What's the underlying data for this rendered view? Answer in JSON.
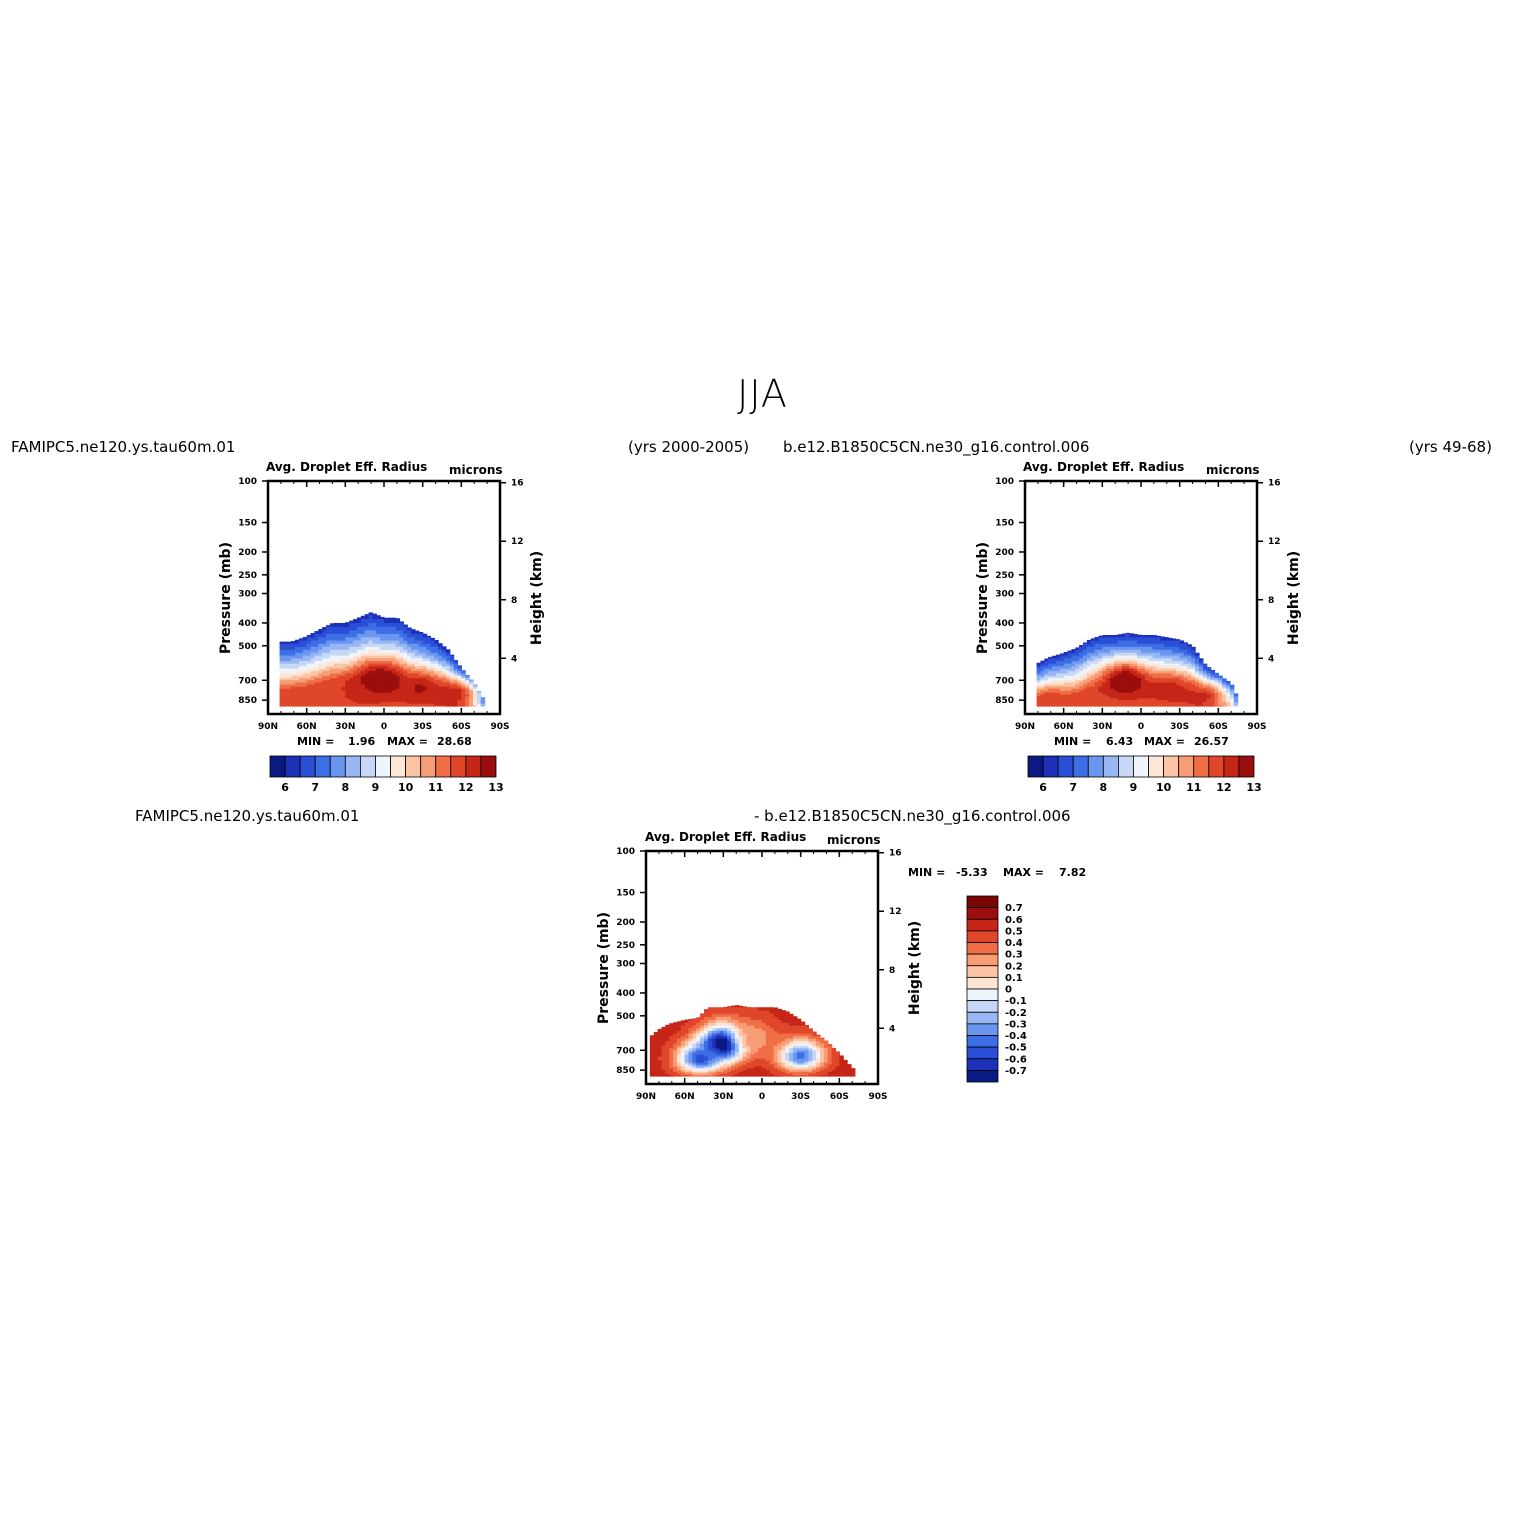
{
  "title": "JJA",
  "header_left": {
    "case": "FAMIPC5.ne120.ys.tau60m.01",
    "years": "(yrs 2000-2005)"
  },
  "header_right": {
    "case": "b.e12.B1850C5CN.ne30_g16.control.006",
    "years": "(yrs 49-68)"
  },
  "diff_header": {
    "left": "FAMIPC5.ne120.ys.tau60m.01",
    "right": "- b.e12.B1850C5CN.ne30_g16.control.006"
  },
  "panel_labels": {
    "variable": "Avg. Droplet Eff. Radius",
    "units": "microns",
    "ylabel": "Pressure (mb)",
    "y2label": "Height (km)"
  },
  "panels": [
    {
      "id": "left",
      "min_label": "MIN =",
      "min": "1.96",
      "max_label": "MAX =",
      "max": "28.68"
    },
    {
      "id": "right",
      "min_label": "MIN =",
      "min": "6.43",
      "max_label": "MAX =",
      "max": "26.57"
    },
    {
      "id": "diff",
      "min_label": "MIN =",
      "min": "-5.33",
      "max_label": "MAX =",
      "max": "7.82"
    }
  ],
  "colors": {
    "seq": [
      "#0a1a82",
      "#1c30b8",
      "#2a4fd6",
      "#3c6ee6",
      "#6a96f0",
      "#98b6f4",
      "#c6d8f6",
      "#eef4fb",
      "#fde6d6",
      "#fbc4a4",
      "#f79c74",
      "#ef6e46",
      "#e0462a",
      "#c62618",
      "#9a0e0e"
    ],
    "div": [
      "#0a1a82",
      "#1c30b8",
      "#2a4fd6",
      "#3c6ee6",
      "#6a96f0",
      "#98b6f4",
      "#c6d8f6",
      "#eef4fb",
      "#fde6d6",
      "#fbc4a4",
      "#f79c74",
      "#ef6e46",
      "#e0462a",
      "#c62618",
      "#9a0e0e",
      "#7a0606"
    ]
  },
  "chart_data": [
    {
      "type": "heatmap",
      "panel": "left",
      "title": "Avg. Droplet Eff. Radius",
      "units": "microns",
      "x_ticks": [
        "90N",
        "60N",
        "30N",
        "0",
        "30S",
        "60S",
        "90S"
      ],
      "x_values": [
        90,
        60,
        30,
        0,
        -30,
        -60,
        -90
      ],
      "y_ticks": [
        100,
        150,
        200,
        250,
        300,
        400,
        500,
        700,
        850
      ],
      "y2_ticks": [
        16,
        12,
        8,
        4
      ],
      "xlabel": "",
      "ylabel": "Pressure (mb)",
      "y2label": "Height (km)",
      "ylim": [
        1000,
        100
      ],
      "colorbar_labels": [
        "6",
        "7",
        "8",
        "9",
        "10",
        "11",
        "12",
        "13"
      ],
      "colorbar_levels": [
        6,
        6.5,
        7,
        7.5,
        8,
        8.5,
        9,
        9.5,
        10,
        10.5,
        11,
        11.5,
        12,
        12.5,
        13
      ],
      "min": 1.96,
      "max": 28.68,
      "cloud_top_pressure": [
        [
          82,
          480
        ],
        [
          72,
          480
        ],
        [
          62,
          460
        ],
        [
          48,
          420
        ],
        [
          40,
          400
        ],
        [
          30,
          400
        ],
        [
          20,
          380
        ],
        [
          10,
          360
        ],
        [
          0,
          380
        ],
        [
          -10,
          380
        ],
        [
          -20,
          420
        ],
        [
          -30,
          440
        ],
        [
          -40,
          470
        ],
        [
          -50,
          520
        ],
        [
          -60,
          620
        ],
        [
          -70,
          720
        ],
        [
          -78,
          850
        ]
      ],
      "core": [
        {
          "lat": 2,
          "p": 700,
          "v": 13.5
        },
        {
          "lat": 15,
          "p": 780,
          "v": 12.5
        },
        {
          "lat": -28,
          "p": 760,
          "v": 12.8
        },
        {
          "lat": -55,
          "p": 800,
          "v": 12.6
        },
        {
          "lat": 70,
          "p": 870,
          "v": 12.2
        }
      ]
    },
    {
      "type": "heatmap",
      "panel": "right",
      "title": "Avg. Droplet Eff. Radius",
      "units": "microns",
      "x_ticks": [
        "90N",
        "60N",
        "30N",
        "0",
        "30S",
        "60S",
        "90S"
      ],
      "x_values": [
        90,
        60,
        30,
        0,
        -30,
        -60,
        -90
      ],
      "y_ticks": [
        100,
        150,
        200,
        250,
        300,
        400,
        500,
        700,
        850
      ],
      "y2_ticks": [
        16,
        12,
        8,
        4
      ],
      "xlabel": "",
      "ylabel": "Pressure (mb)",
      "y2label": "Height (km)",
      "ylim": [
        1000,
        100
      ],
      "colorbar_labels": [
        "6",
        "7",
        "8",
        "9",
        "10",
        "11",
        "12",
        "13"
      ],
      "colorbar_levels": [
        6,
        6.5,
        7,
        7.5,
        8,
        8.5,
        9,
        9.5,
        10,
        10.5,
        11,
        11.5,
        12,
        12.5,
        13
      ],
      "min": 6.43,
      "max": 26.57,
      "cloud_top_pressure": [
        [
          82,
          600
        ],
        [
          72,
          560
        ],
        [
          62,
          540
        ],
        [
          50,
          510
        ],
        [
          40,
          470
        ],
        [
          30,
          450
        ],
        [
          20,
          450
        ],
        [
          10,
          440
        ],
        [
          0,
          450
        ],
        [
          -10,
          450
        ],
        [
          -20,
          460
        ],
        [
          -30,
          470
        ],
        [
          -40,
          500
        ],
        [
          -50,
          600
        ],
        [
          -60,
          660
        ],
        [
          -70,
          720
        ],
        [
          -76,
          850
        ]
      ],
      "core": [
        {
          "lat": 12,
          "p": 700,
          "v": 13.5
        },
        {
          "lat": -22,
          "p": 760,
          "v": 12.5
        },
        {
          "lat": -48,
          "p": 820,
          "v": 12.4
        },
        {
          "lat": 72,
          "p": 860,
          "v": 12.2
        }
      ]
    },
    {
      "type": "heatmap",
      "panel": "diff",
      "title": "Avg. Droplet Eff. Radius",
      "units": "microns",
      "x_ticks": [
        "90N",
        "60N",
        "30N",
        "0",
        "30S",
        "60S",
        "90S"
      ],
      "x_values": [
        90,
        60,
        30,
        0,
        -30,
        -60,
        -90
      ],
      "y_ticks": [
        100,
        150,
        200,
        250,
        300,
        400,
        500,
        700,
        850
      ],
      "y2_ticks": [
        16,
        12,
        8,
        4
      ],
      "xlabel": "",
      "ylabel": "Pressure (mb)",
      "y2label": "Height (km)",
      "ylim": [
        1000,
        100
      ],
      "colorbar_labels": [
        "0.7",
        "0.6",
        "0.5",
        "0.4",
        "0.3",
        "0.2",
        "0.1",
        "0",
        "-0.1",
        "-0.2",
        "-0.3",
        "-0.4",
        "-0.5",
        "-0.6",
        "-0.7"
      ],
      "min": -5.33,
      "max": 7.82,
      "cloud_top_pressure": [
        [
          88,
          620
        ],
        [
          80,
          570
        ],
        [
          72,
          540
        ],
        [
          60,
          520
        ],
        [
          50,
          510
        ],
        [
          42,
          460
        ],
        [
          30,
          460
        ],
        [
          20,
          450
        ],
        [
          10,
          460
        ],
        [
          0,
          460
        ],
        [
          -10,
          460
        ],
        [
          -20,
          480
        ],
        [
          -30,
          520
        ],
        [
          -40,
          580
        ],
        [
          -50,
          640
        ],
        [
          -60,
          720
        ],
        [
          -72,
          850
        ]
      ],
      "core": [
        {
          "lat": 30,
          "p": 660,
          "v": -1.0
        },
        {
          "lat": 48,
          "p": 760,
          "v": -0.5
        },
        {
          "lat": -30,
          "p": 740,
          "v": -0.4
        },
        {
          "lat": 5,
          "p": 620,
          "v": 0.3
        }
      ]
    }
  ]
}
